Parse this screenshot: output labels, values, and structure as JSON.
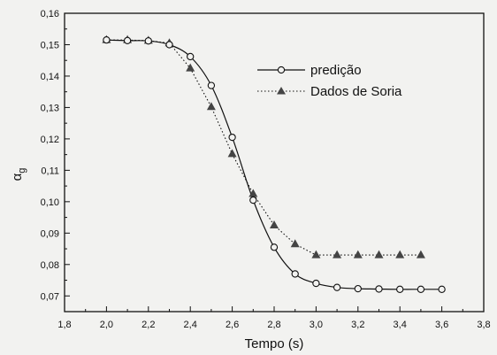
{
  "chart_data": {
    "type": "line",
    "title": "",
    "xlabel": "Tempo (s)",
    "ylabel": "α",
    "ylabel_sub": "g",
    "xlim": [
      1.8,
      3.8
    ],
    "ylim": [
      0.065,
      0.16
    ],
    "x_ticks": [
      "1,8",
      "2,0",
      "2,2",
      "2,4",
      "2,6",
      "2,8",
      "3,0",
      "3,2",
      "3,4",
      "3,6",
      "3,8"
    ],
    "y_ticks": [
      "0,07",
      "0,08",
      "0,09",
      "0,10",
      "0,11",
      "0,12",
      "0,13",
      "0,14",
      "0,15",
      "0,16"
    ],
    "grid": false,
    "legend_position": "top-right",
    "series": [
      {
        "name": "predição",
        "marker": "open-circle",
        "line": "solid",
        "color": "#111111",
        "x": [
          2.0,
          2.1,
          2.2,
          2.3,
          2.4,
          2.5,
          2.6,
          2.7,
          2.8,
          2.9,
          3.0,
          3.1,
          3.2,
          3.3,
          3.4,
          3.5,
          3.6
        ],
        "y": [
          0.1515,
          0.1513,
          0.1512,
          0.15,
          0.1462,
          0.137,
          0.1205,
          0.1005,
          0.0855,
          0.077,
          0.074,
          0.0727,
          0.0723,
          0.0722,
          0.0721,
          0.0721,
          0.0721
        ]
      },
      {
        "name": "Dados de Soria",
        "marker": "filled-triangle",
        "line": "dotted",
        "color": "#111111",
        "x": [
          2.0,
          2.1,
          2.2,
          2.3,
          2.4,
          2.5,
          2.6,
          2.7,
          2.8,
          2.9,
          3.0,
          3.1,
          3.2,
          3.3,
          3.4,
          3.5
        ],
        "y": [
          0.1515,
          0.1515,
          0.1513,
          0.1505,
          0.1425,
          0.1302,
          0.1152,
          0.1025,
          0.0925,
          0.0865,
          0.083,
          0.083,
          0.083,
          0.083,
          0.083,
          0.083
        ]
      }
    ]
  }
}
